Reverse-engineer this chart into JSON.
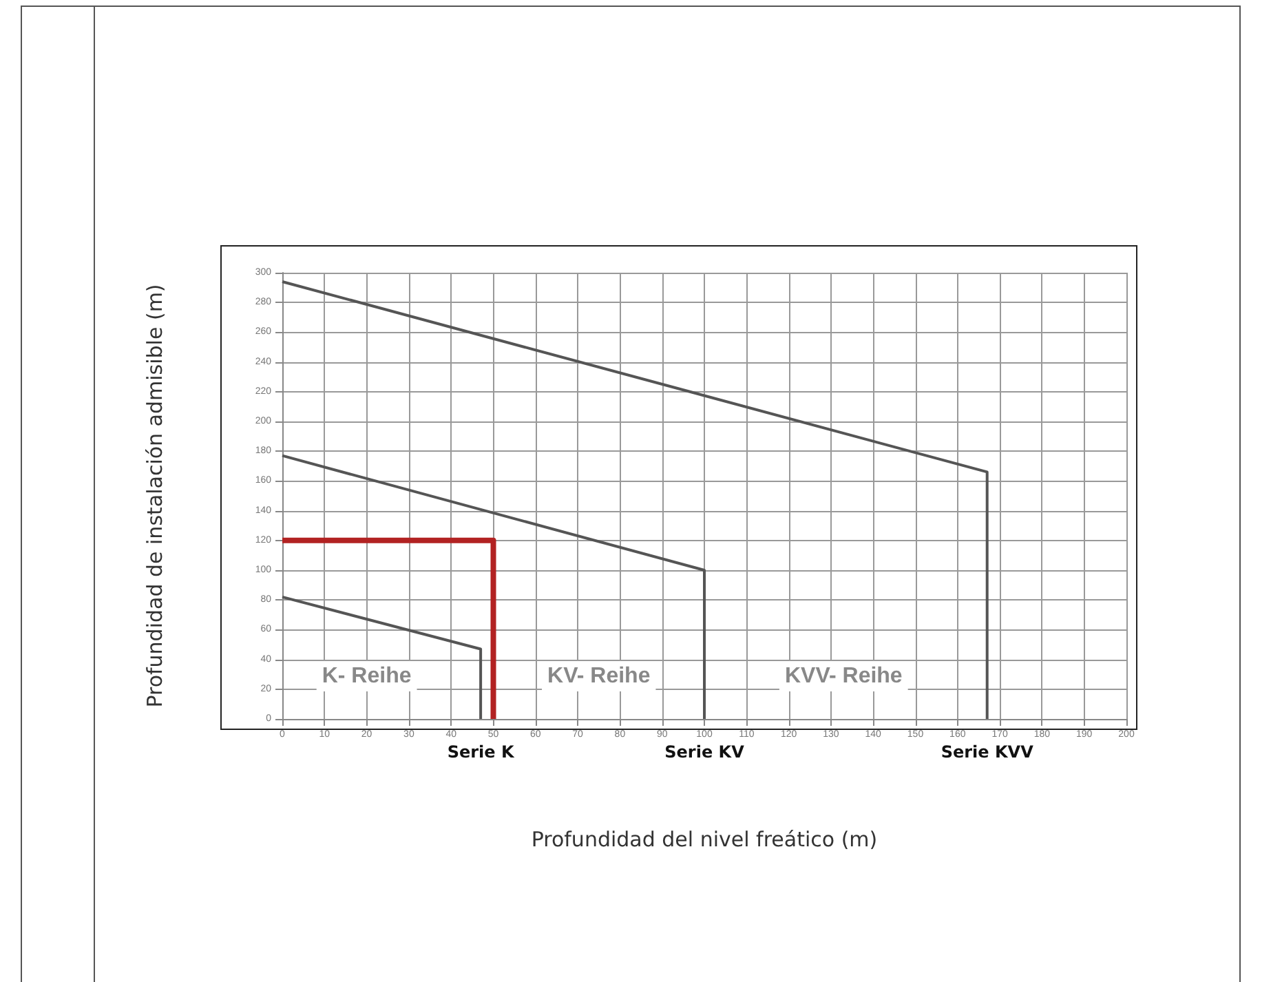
{
  "chart_data": {
    "type": "line",
    "xlabel": "Profundidad del nivel freático (m)",
    "ylabel": "Profundidad de instalación admisible (m)",
    "xlim": [
      0,
      200
    ],
    "xticks": [
      0,
      10,
      20,
      30,
      40,
      50,
      60,
      70,
      80,
      90,
      100,
      110,
      120,
      130,
      140,
      150,
      160,
      170,
      180,
      190,
      200
    ],
    "ylim": [
      0,
      300
    ],
    "yticks": [
      0,
      20,
      40,
      60,
      80,
      100,
      120,
      140,
      160,
      180,
      200,
      220,
      240,
      260,
      280,
      300
    ],
    "grid": true,
    "marker": "none",
    "line_style": "solid",
    "series": [
      {
        "color": "#555555",
        "x": [
          0,
          47,
          47
        ],
        "values": [
          82,
          47,
          0
        ]
      },
      {
        "color": "#555555",
        "x": [
          0,
          100,
          100
        ],
        "values": [
          177,
          100,
          0
        ]
      },
      {
        "color": "#555555",
        "x": [
          0,
          167,
          167
        ],
        "values": [
          294,
          166,
          0
        ]
      },
      {
        "color": "#b22222",
        "x": [
          0,
          50,
          50
        ],
        "values": [
          120,
          120,
          0
        ]
      }
    ],
    "annotations": [
      "K- Reihe",
      "KV- Reihe",
      "KVV- Reihe",
      {
        "text": "Serie K",
        "x": 47,
        "y": 0
      },
      {
        "text": "Serie KV",
        "x": 100,
        "y": 0
      },
      {
        "text": "Serie KVV",
        "x": 167,
        "y": 0
      }
    ]
  }
}
